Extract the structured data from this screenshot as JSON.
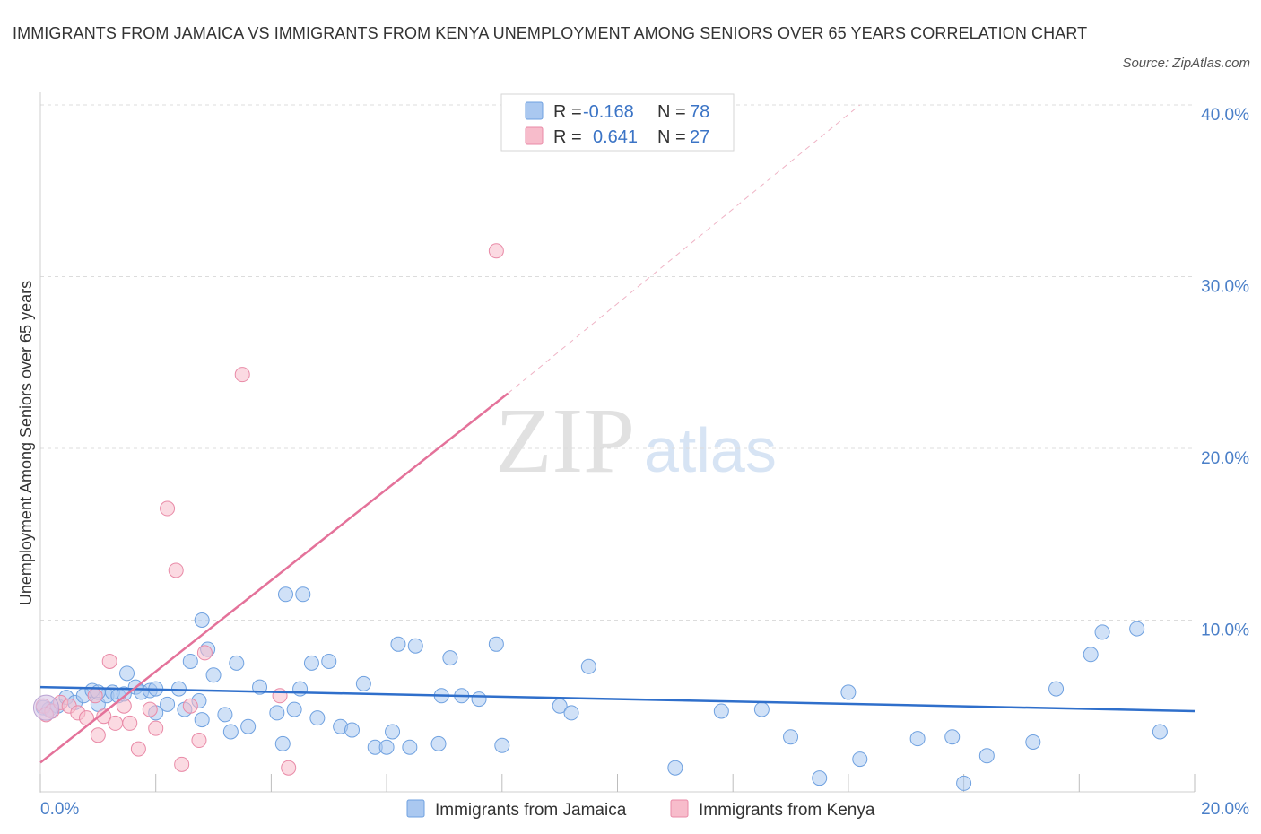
{
  "header": {
    "title": "IMMIGRANTS FROM JAMAICA VS IMMIGRANTS FROM KENYA UNEMPLOYMENT AMONG SENIORS OVER 65 YEARS CORRELATION CHART",
    "source": "Source: ZipAtlas.com"
  },
  "watermark": {
    "zip": "ZIP",
    "atlas": "atlas"
  },
  "stats_box": {
    "rows": [
      {
        "r_label": "R =",
        "r_value": "-0.168",
        "n_label": "N =",
        "n_value": "78",
        "color": "#aac8f0"
      },
      {
        "r_label": "R =",
        "r_value": "0.641",
        "n_label": "N =",
        "n_value": "27",
        "color": "#f7bccb"
      }
    ]
  },
  "chart_data": {
    "type": "scatter",
    "title": "IMMIGRANTS FROM JAMAICA VS IMMIGRANTS FROM KENYA UNEMPLOYMENT AMONG SENIORS OVER 65 YEARS CORRELATION CHART",
    "xlabel": "",
    "ylabel": "Unemployment Among Seniors over 65 years",
    "xlim": [
      0,
      20
    ],
    "ylim": [
      0,
      40
    ],
    "x_tick_labels": [
      {
        "value": 0,
        "label": "0.0%"
      },
      {
        "value": 20,
        "label": "20.0%"
      }
    ],
    "y_tick_labels": [
      {
        "value": 10,
        "label": "10.0%"
      },
      {
        "value": 20,
        "label": "20.0%"
      },
      {
        "value": 30,
        "label": "30.0%"
      },
      {
        "value": 40,
        "label": "40.0%"
      }
    ],
    "legend_position": "bottom",
    "series": [
      {
        "name": "Immigrants from Jamaica",
        "color": "#6fa1e0",
        "fill": "#aac8f0",
        "points": [
          [
            0.05,
            4.9
          ],
          [
            0.15,
            4.8
          ],
          [
            0.3,
            5.0
          ],
          [
            0.45,
            5.5
          ],
          [
            0.6,
            5.2
          ],
          [
            0.75,
            5.6
          ],
          [
            0.9,
            5.9
          ],
          [
            1.0,
            5.1
          ],
          [
            1.15,
            5.6
          ],
          [
            1.25,
            5.8
          ],
          [
            1.35,
            5.6
          ],
          [
            1.45,
            5.7
          ],
          [
            1.5,
            6.9
          ],
          [
            1.65,
            6.1
          ],
          [
            1.75,
            5.8
          ],
          [
            1.9,
            5.9
          ],
          [
            2.0,
            4.6
          ],
          [
            2.2,
            5.1
          ],
          [
            2.4,
            6.0
          ],
          [
            2.5,
            4.8
          ],
          [
            2.6,
            7.6
          ],
          [
            2.8,
            4.2
          ],
          [
            2.9,
            8.3
          ],
          [
            3.0,
            6.8
          ],
          [
            3.2,
            4.5
          ],
          [
            3.4,
            7.5
          ],
          [
            3.6,
            3.8
          ],
          [
            3.8,
            6.1
          ],
          [
            4.1,
            4.6
          ],
          [
            4.2,
            2.8
          ],
          [
            4.4,
            4.8
          ],
          [
            4.5,
            6.0
          ],
          [
            4.7,
            7.5
          ],
          [
            4.8,
            4.3
          ],
          [
            5.0,
            7.6
          ],
          [
            5.2,
            3.8
          ],
          [
            5.4,
            3.6
          ],
          [
            5.6,
            6.3
          ],
          [
            5.8,
            2.6
          ],
          [
            6.0,
            2.6
          ],
          [
            6.2,
            8.6
          ],
          [
            6.5,
            8.5
          ],
          [
            6.9,
            2.8
          ],
          [
            6.95,
            5.6
          ],
          [
            7.1,
            7.8
          ],
          [
            7.3,
            5.6
          ],
          [
            7.6,
            5.4
          ],
          [
            7.9,
            8.6
          ],
          [
            8.0,
            2.7
          ],
          [
            9.0,
            5.0
          ],
          [
            9.5,
            7.3
          ],
          [
            11.0,
            1.4
          ],
          [
            11.8,
            4.7
          ],
          [
            13.0,
            3.2
          ],
          [
            13.5,
            0.8
          ],
          [
            14.0,
            5.8
          ],
          [
            14.2,
            1.9
          ],
          [
            15.2,
            3.1
          ],
          [
            15.8,
            3.2
          ],
          [
            16.0,
            0.5
          ],
          [
            16.4,
            2.1
          ],
          [
            17.2,
            2.9
          ],
          [
            17.6,
            6.0
          ],
          [
            18.2,
            8.0
          ],
          [
            18.4,
            9.3
          ],
          [
            19.0,
            9.5
          ],
          [
            19.4,
            3.5
          ],
          [
            12.5,
            4.8
          ],
          [
            3.3,
            3.5
          ],
          [
            2.0,
            6.0
          ],
          [
            6.1,
            3.5
          ],
          [
            2.75,
            5.3
          ],
          [
            4.25,
            11.5
          ],
          [
            4.55,
            11.5
          ],
          [
            1.0,
            5.8
          ],
          [
            2.8,
            10.0
          ],
          [
            6.4,
            2.6
          ],
          [
            9.2,
            4.6
          ]
        ]
      },
      {
        "name": "Immigrants from Kenya",
        "color": "#e98aa7",
        "fill": "#f7bccb",
        "points": [
          [
            0.05,
            5.0
          ],
          [
            0.2,
            4.7
          ],
          [
            0.35,
            5.2
          ],
          [
            0.5,
            5.0
          ],
          [
            0.65,
            4.6
          ],
          [
            0.8,
            4.3
          ],
          [
            0.95,
            5.6
          ],
          [
            1.1,
            4.4
          ],
          [
            1.2,
            7.6
          ],
          [
            1.3,
            4.0
          ],
          [
            1.45,
            5.0
          ],
          [
            1.55,
            4.0
          ],
          [
            1.7,
            2.5
          ],
          [
            1.9,
            4.8
          ],
          [
            2.0,
            3.7
          ],
          [
            2.2,
            16.5
          ],
          [
            2.35,
            12.9
          ],
          [
            2.45,
            1.6
          ],
          [
            2.6,
            5.0
          ],
          [
            2.75,
            3.0
          ],
          [
            2.85,
            8.1
          ],
          [
            3.5,
            24.3
          ],
          [
            4.15,
            5.6
          ],
          [
            4.3,
            1.4
          ],
          [
            7.9,
            31.5
          ],
          [
            1.0,
            3.3
          ],
          [
            0.1,
            4.5
          ]
        ]
      }
    ],
    "trend_lines": [
      {
        "series": "Immigrants from Jamaica",
        "x": [
          0,
          20
        ],
        "y": [
          6.1,
          4.7
        ],
        "style": "solid"
      },
      {
        "series": "Immigrants from Kenya",
        "x": [
          0,
          8.1
        ],
        "y": [
          1.7,
          23.2
        ],
        "style": "solid"
      },
      {
        "series": "Immigrants from Kenya",
        "x": [
          8.1,
          14.2
        ],
        "y": [
          23.2,
          40.0
        ],
        "style": "dashed"
      }
    ]
  }
}
